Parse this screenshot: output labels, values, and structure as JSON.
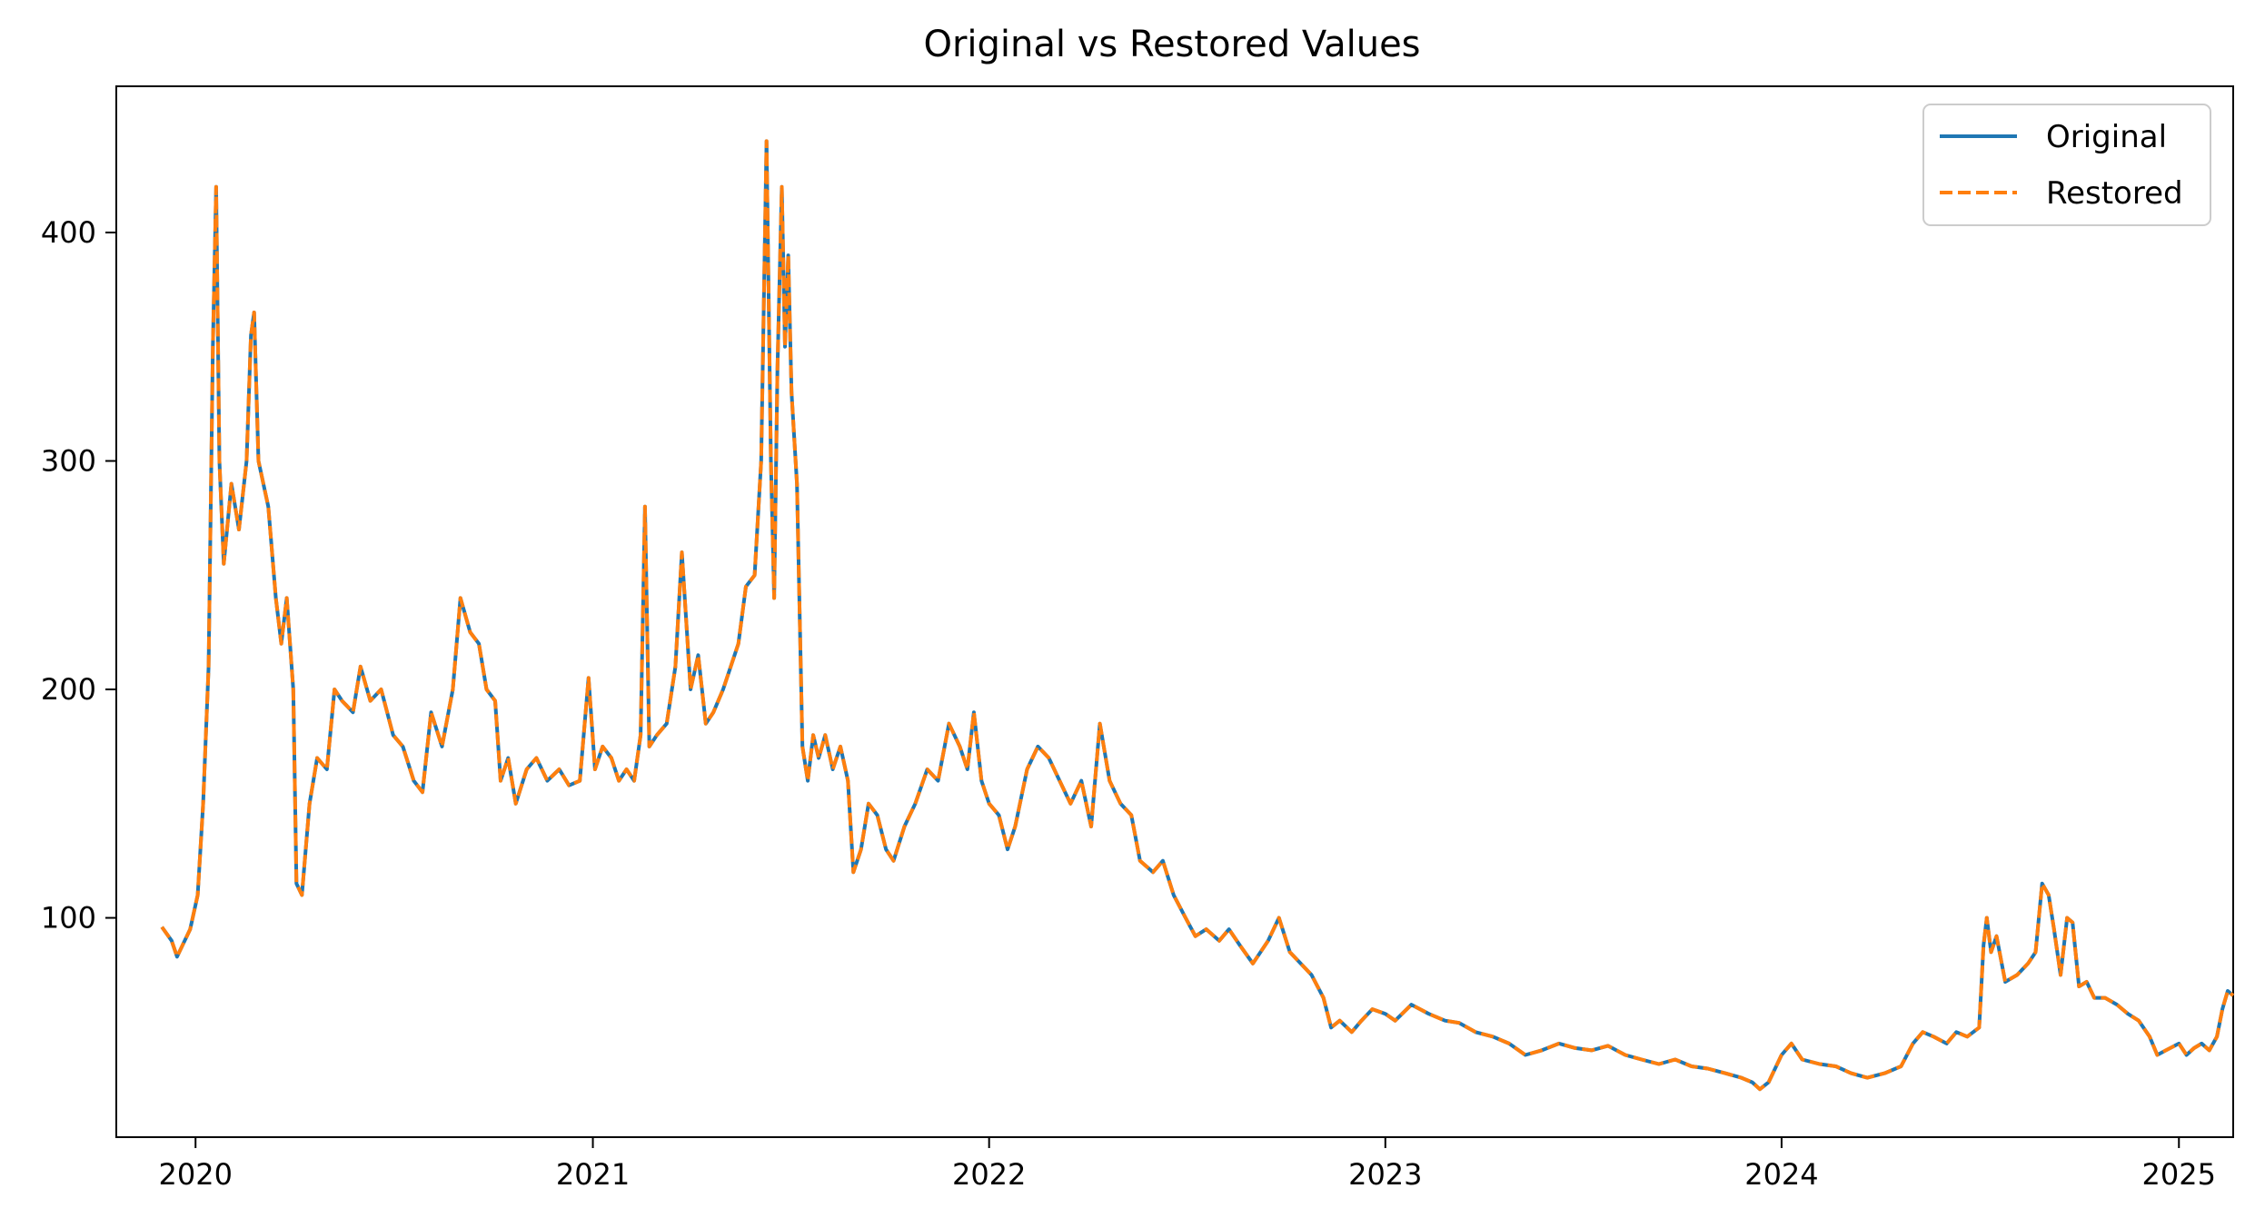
{
  "chart_data": {
    "type": "line",
    "title": "Original vs Restored Values",
    "xlabel": "",
    "ylabel": "",
    "x_ticks": [
      "2020",
      "2021",
      "2022",
      "2023",
      "2024",
      "2025"
    ],
    "y_ticks": [
      100,
      200,
      300,
      400
    ],
    "xlim": [
      "2019-10-20",
      "2025-02-20"
    ],
    "ylim": [
      4,
      464
    ],
    "grid": false,
    "legend_position": "top-right",
    "series": [
      {
        "name": "Original",
        "color": "#1f77b4",
        "style": "solid",
        "points": [
          [
            "2019-12-01",
            96
          ],
          [
            "2019-12-10",
            90
          ],
          [
            "2019-12-15",
            83
          ],
          [
            "2019-12-20",
            88
          ],
          [
            "2019-12-27",
            95
          ],
          [
            "2020-01-03",
            110
          ],
          [
            "2020-01-08",
            150
          ],
          [
            "2020-01-13",
            210
          ],
          [
            "2020-01-17",
            350
          ],
          [
            "2020-01-20",
            420
          ],
          [
            "2020-01-23",
            300
          ],
          [
            "2020-01-27",
            255
          ],
          [
            "2020-02-03",
            290
          ],
          [
            "2020-02-10",
            270
          ],
          [
            "2020-02-17",
            300
          ],
          [
            "2020-02-21",
            355
          ],
          [
            "2020-02-24",
            365
          ],
          [
            "2020-02-28",
            300
          ],
          [
            "2020-03-08",
            280
          ],
          [
            "2020-03-15",
            240
          ],
          [
            "2020-03-20",
            220
          ],
          [
            "2020-03-25",
            240
          ],
          [
            "2020-03-31",
            200
          ],
          [
            "2020-04-03",
            115
          ],
          [
            "2020-04-08",
            110
          ],
          [
            "2020-04-15",
            150
          ],
          [
            "2020-04-22",
            170
          ],
          [
            "2020-05-01",
            165
          ],
          [
            "2020-05-08",
            200
          ],
          [
            "2020-05-15",
            195
          ],
          [
            "2020-05-25",
            190
          ],
          [
            "2020-06-01",
            210
          ],
          [
            "2020-06-10",
            195
          ],
          [
            "2020-06-20",
            200
          ],
          [
            "2020-07-01",
            180
          ],
          [
            "2020-07-10",
            175
          ],
          [
            "2020-07-20",
            160
          ],
          [
            "2020-07-28",
            155
          ],
          [
            "2020-08-05",
            190
          ],
          [
            "2020-08-15",
            175
          ],
          [
            "2020-08-25",
            200
          ],
          [
            "2020-09-01",
            240
          ],
          [
            "2020-09-10",
            225
          ],
          [
            "2020-09-18",
            220
          ],
          [
            "2020-09-25",
            200
          ],
          [
            "2020-10-03",
            195
          ],
          [
            "2020-10-08",
            160
          ],
          [
            "2020-10-15",
            170
          ],
          [
            "2020-10-22",
            150
          ],
          [
            "2020-11-01",
            165
          ],
          [
            "2020-11-10",
            170
          ],
          [
            "2020-11-20",
            160
          ],
          [
            "2020-12-01",
            165
          ],
          [
            "2020-12-10",
            158
          ],
          [
            "2020-12-20",
            160
          ],
          [
            "2020-12-28",
            205
          ],
          [
            "2021-01-03",
            165
          ],
          [
            "2021-01-10",
            175
          ],
          [
            "2021-01-18",
            170
          ],
          [
            "2021-01-25",
            160
          ],
          [
            "2021-02-01",
            165
          ],
          [
            "2021-02-08",
            160
          ],
          [
            "2021-02-14",
            180
          ],
          [
            "2021-02-18",
            280
          ],
          [
            "2021-02-22",
            175
          ],
          [
            "2021-03-01",
            180
          ],
          [
            "2021-03-10",
            185
          ],
          [
            "2021-03-18",
            210
          ],
          [
            "2021-03-24",
            260
          ],
          [
            "2021-04-01",
            200
          ],
          [
            "2021-04-08",
            215
          ],
          [
            "2021-04-15",
            185
          ],
          [
            "2021-04-22",
            190
          ],
          [
            "2021-05-01",
            200
          ],
          [
            "2021-05-08",
            210
          ],
          [
            "2021-05-15",
            220
          ],
          [
            "2021-05-22",
            245
          ],
          [
            "2021-05-30",
            250
          ],
          [
            "2021-06-05",
            300
          ],
          [
            "2021-06-10",
            440
          ],
          [
            "2021-06-14",
            300
          ],
          [
            "2021-06-17",
            240
          ],
          [
            "2021-06-20",
            340
          ],
          [
            "2021-06-24",
            420
          ],
          [
            "2021-06-27",
            350
          ],
          [
            "2021-06-30",
            390
          ],
          [
            "2021-07-03",
            330
          ],
          [
            "2021-07-08",
            290
          ],
          [
            "2021-07-13",
            175
          ],
          [
            "2021-07-18",
            160
          ],
          [
            "2021-07-23",
            180
          ],
          [
            "2021-07-28",
            170
          ],
          [
            "2021-08-03",
            180
          ],
          [
            "2021-08-10",
            165
          ],
          [
            "2021-08-17",
            175
          ],
          [
            "2021-08-24",
            160
          ],
          [
            "2021-08-29",
            120
          ],
          [
            "2021-09-05",
            130
          ],
          [
            "2021-09-12",
            150
          ],
          [
            "2021-09-20",
            145
          ],
          [
            "2021-09-28",
            130
          ],
          [
            "2021-10-05",
            125
          ],
          [
            "2021-10-15",
            140
          ],
          [
            "2021-10-25",
            150
          ],
          [
            "2021-11-05",
            165
          ],
          [
            "2021-11-15",
            160
          ],
          [
            "2021-11-25",
            185
          ],
          [
            "2021-12-05",
            175
          ],
          [
            "2021-12-12",
            165
          ],
          [
            "2021-12-18",
            190
          ],
          [
            "2021-12-25",
            160
          ],
          [
            "2022-01-01",
            150
          ],
          [
            "2022-01-10",
            145
          ],
          [
            "2022-01-18",
            130
          ],
          [
            "2022-01-25",
            140
          ],
          [
            "2022-02-05",
            165
          ],
          [
            "2022-02-15",
            175
          ],
          [
            "2022-02-25",
            170
          ],
          [
            "2022-03-07",
            160
          ],
          [
            "2022-03-17",
            150
          ],
          [
            "2022-03-27",
            160
          ],
          [
            "2022-04-05",
            140
          ],
          [
            "2022-04-13",
            185
          ],
          [
            "2022-04-22",
            160
          ],
          [
            "2022-05-02",
            150
          ],
          [
            "2022-05-12",
            145
          ],
          [
            "2022-05-20",
            125
          ],
          [
            "2022-06-01",
            120
          ],
          [
            "2022-06-10",
            125
          ],
          [
            "2022-06-20",
            110
          ],
          [
            "2022-07-01",
            100
          ],
          [
            "2022-07-10",
            92
          ],
          [
            "2022-07-20",
            95
          ],
          [
            "2022-08-01",
            90
          ],
          [
            "2022-08-10",
            95
          ],
          [
            "2022-08-20",
            88
          ],
          [
            "2022-09-01",
            80
          ],
          [
            "2022-09-15",
            90
          ],
          [
            "2022-09-25",
            100
          ],
          [
            "2022-10-05",
            85
          ],
          [
            "2022-10-15",
            80
          ],
          [
            "2022-10-25",
            75
          ],
          [
            "2022-11-05",
            65
          ],
          [
            "2022-11-12",
            52
          ],
          [
            "2022-11-20",
            55
          ],
          [
            "2022-12-01",
            50
          ],
          [
            "2022-12-10",
            55
          ],
          [
            "2022-12-20",
            60
          ],
          [
            "2023-01-01",
            58
          ],
          [
            "2023-01-10",
            55
          ],
          [
            "2023-01-25",
            62
          ],
          [
            "2023-02-10",
            58
          ],
          [
            "2023-02-25",
            55
          ],
          [
            "2023-03-10",
            54
          ],
          [
            "2023-03-25",
            50
          ],
          [
            "2023-04-10",
            48
          ],
          [
            "2023-04-25",
            45
          ],
          [
            "2023-05-10",
            40
          ],
          [
            "2023-05-25",
            42
          ],
          [
            "2023-06-10",
            45
          ],
          [
            "2023-06-25",
            43
          ],
          [
            "2023-07-10",
            42
          ],
          [
            "2023-07-25",
            44
          ],
          [
            "2023-08-10",
            40
          ],
          [
            "2023-08-25",
            38
          ],
          [
            "2023-09-10",
            36
          ],
          [
            "2023-09-25",
            38
          ],
          [
            "2023-10-10",
            35
          ],
          [
            "2023-10-25",
            34
          ],
          [
            "2023-11-10",
            32
          ],
          [
            "2023-11-25",
            30
          ],
          [
            "2023-12-05",
            28
          ],
          [
            "2023-12-12",
            25
          ],
          [
            "2023-12-20",
            28
          ],
          [
            "2024-01-01",
            40
          ],
          [
            "2024-01-10",
            45
          ],
          [
            "2024-01-20",
            38
          ],
          [
            "2024-02-05",
            36
          ],
          [
            "2024-02-20",
            35
          ],
          [
            "2024-03-05",
            32
          ],
          [
            "2024-03-20",
            30
          ],
          [
            "2024-04-05",
            32
          ],
          [
            "2024-04-20",
            35
          ],
          [
            "2024-05-01",
            45
          ],
          [
            "2024-05-10",
            50
          ],
          [
            "2024-05-20",
            48
          ],
          [
            "2024-06-01",
            45
          ],
          [
            "2024-06-10",
            50
          ],
          [
            "2024-06-20",
            48
          ],
          [
            "2024-07-01",
            52
          ],
          [
            "2024-07-05",
            88
          ],
          [
            "2024-07-08",
            100
          ],
          [
            "2024-07-12",
            85
          ],
          [
            "2024-07-17",
            92
          ],
          [
            "2024-07-25",
            72
          ],
          [
            "2024-08-05",
            75
          ],
          [
            "2024-08-15",
            80
          ],
          [
            "2024-08-22",
            85
          ],
          [
            "2024-08-28",
            115
          ],
          [
            "2024-09-03",
            110
          ],
          [
            "2024-09-08",
            95
          ],
          [
            "2024-09-14",
            75
          ],
          [
            "2024-09-20",
            100
          ],
          [
            "2024-09-25",
            98
          ],
          [
            "2024-10-01",
            70
          ],
          [
            "2024-10-08",
            72
          ],
          [
            "2024-10-15",
            65
          ],
          [
            "2024-10-25",
            65
          ],
          [
            "2024-11-05",
            62
          ],
          [
            "2024-11-15",
            58
          ],
          [
            "2024-11-25",
            55
          ],
          [
            "2024-12-05",
            48
          ],
          [
            "2024-12-12",
            40
          ],
          [
            "2024-12-20",
            42
          ],
          [
            "2025-01-01",
            45
          ],
          [
            "2025-01-08",
            40
          ],
          [
            "2025-01-15",
            43
          ],
          [
            "2025-01-22",
            45
          ],
          [
            "2025-01-29",
            42
          ],
          [
            "2025-02-05",
            48
          ],
          [
            "2025-02-10",
            60
          ],
          [
            "2025-02-15",
            68
          ],
          [
            "2025-02-20",
            66
          ]
        ]
      },
      {
        "name": "Restored",
        "color": "#ff7f0e",
        "style": "dashed",
        "points": "same-as-original"
      }
    ]
  }
}
